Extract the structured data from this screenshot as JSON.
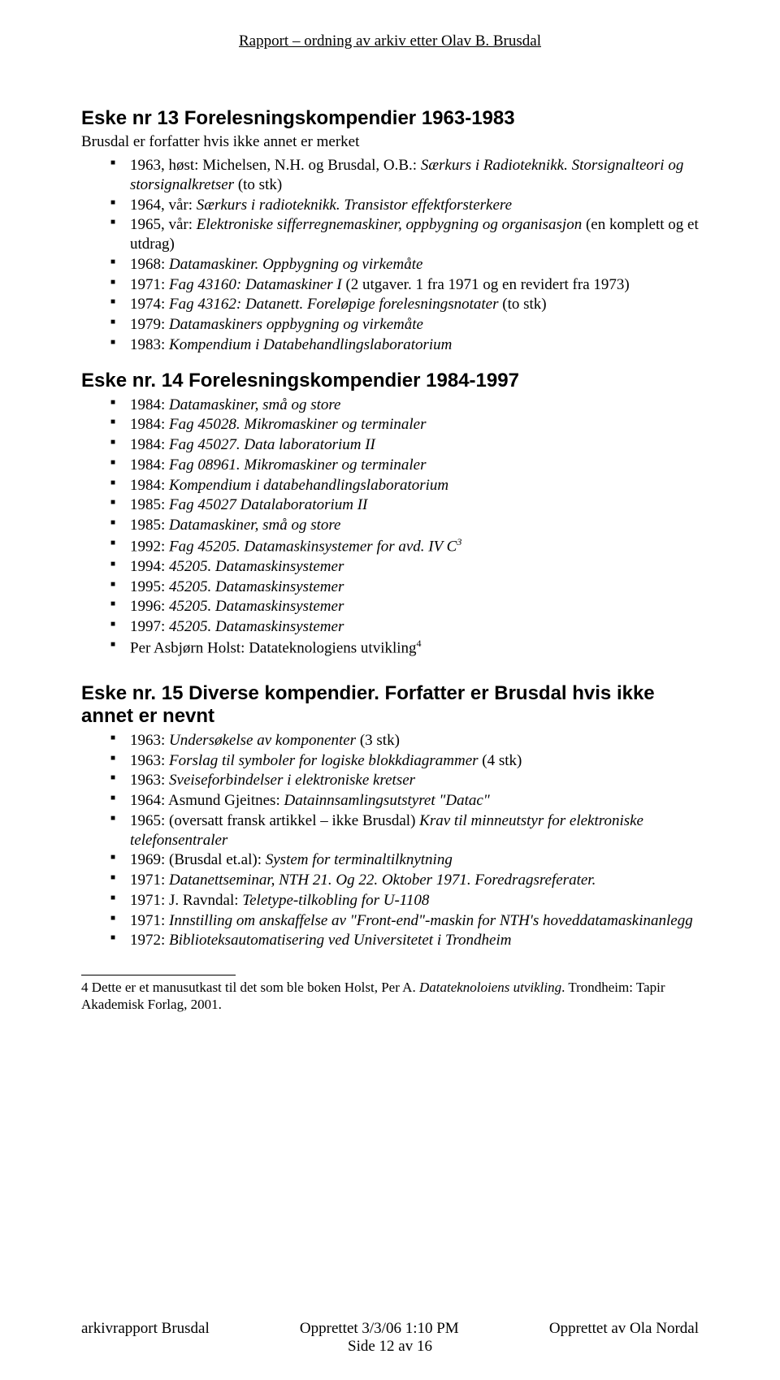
{
  "header": "Rapport – ordning av arkiv etter Olav B. Brusdal",
  "section1": {
    "heading": "Eske nr 13 Forelesningskompendier 1963-1983",
    "subtext": "Brusdal er forfatter hvis ikke annet er merket",
    "items": [
      {
        "prefix": "1963, høst: Michelsen, N.H. og Brusdal, O.B.: ",
        "italic": "Særkurs i Radioteknikk. Storsignalteori og storsignalkretser",
        "suffix": " (to stk)"
      },
      {
        "prefix": "1964, vår: ",
        "italic": "Særkurs i radioteknikk. Transistor effektforsterkere",
        "suffix": ""
      },
      {
        "prefix": "1965, vår: ",
        "italic": "Elektroniske sifferregnemaskiner, oppbygning og organisasjon",
        "suffix": " (en komplett og et utdrag)"
      },
      {
        "prefix": "1968: ",
        "italic": "Datamaskiner. Oppbygning og virkemåte",
        "suffix": ""
      },
      {
        "prefix": "1971: ",
        "italic": "Fag 43160: Datamaskiner I",
        "suffix": " (2 utgaver. 1 fra 1971 og en revidert fra 1973)"
      },
      {
        "prefix": "1974: ",
        "italic": "Fag 43162: Datanett. Foreløpige forelesningsnotater",
        "suffix": " (to stk)"
      },
      {
        "prefix": "1979: ",
        "italic": "Datamaskiners oppbygning og virkemåte",
        "suffix": ""
      },
      {
        "prefix": "1983: ",
        "italic": "Kompendium i Databehandlingslaboratorium",
        "suffix": ""
      }
    ]
  },
  "section2": {
    "heading": "Eske nr. 14 Forelesningskompendier 1984-1997",
    "items": [
      {
        "prefix": "1984: ",
        "italic": "Datamaskiner, små og store",
        "suffix": ""
      },
      {
        "prefix": "1984: ",
        "italic": "Fag 45028. Mikromaskiner og terminaler",
        "suffix": ""
      },
      {
        "prefix": "1984: ",
        "italic": "Fag 45027. Data laboratorium II",
        "suffix": ""
      },
      {
        "prefix": "1984: ",
        "italic": "Fag 08961. Mikromaskiner og terminaler",
        "suffix": ""
      },
      {
        "prefix": "1984: ",
        "italic": "Kompendium i databehandlingslaboratorium",
        "suffix": ""
      },
      {
        "prefix": "1985: ",
        "italic": "Fag 45027 Datalaboratorium II",
        "suffix": ""
      },
      {
        "prefix": "1985: ",
        "italic": "Datamaskiner, små og store",
        "suffix": ""
      },
      {
        "prefix": "1992: ",
        "italic": "Fag 45205. Datamaskinsystemer for avd. IV C",
        "suffix": "",
        "sup": "3"
      },
      {
        "prefix": "1994: ",
        "italic": "45205. Datamaskinsystemer",
        "suffix": ""
      },
      {
        "prefix": "1995: ",
        "italic": "45205. Datamaskinsystemer",
        "suffix": ""
      },
      {
        "prefix": "1996: ",
        "italic": "45205. Datamaskinsystemer",
        "suffix": ""
      },
      {
        "prefix": "1997: ",
        "italic": "45205. Datamaskinsystemer",
        "suffix": ""
      },
      {
        "prefix": "Per Asbjørn Holst: Datateknologiens utvikling",
        "italic": "",
        "suffix": "",
        "sup_normal": "4"
      }
    ]
  },
  "section3": {
    "heading": "Eske nr. 15 Diverse kompendier. Forfatter er Brusdal hvis ikke annet er nevnt",
    "items": [
      {
        "prefix": "1963: ",
        "italic": "Undersøkelse av komponenter",
        "suffix": " (3 stk)"
      },
      {
        "prefix": "1963: ",
        "italic": "Forslag til symboler for logiske blokkdiagrammer",
        "suffix": " (4 stk)"
      },
      {
        "prefix": "1963: ",
        "italic": "Sveiseforbindelser i elektroniske kretser",
        "suffix": ""
      },
      {
        "prefix": "1964: Asmund Gjeitnes: ",
        "italic": "Datainnsamlingsutstyret \"Datac\"",
        "suffix": ""
      },
      {
        "prefix": "1965: (oversatt fransk artikkel – ikke Brusdal) ",
        "italic": "Krav til minneutstyr for elektroniske telefonsentraler",
        "suffix": ""
      },
      {
        "prefix": "1969: (Brusdal et.al): ",
        "italic": "System for terminaltilknytning",
        "suffix": ""
      },
      {
        "prefix": "1971: ",
        "italic": "Datanettseminar, NTH 21. Og 22. Oktober 1971. Foredragsreferater.",
        "suffix": ""
      },
      {
        "prefix": "1971: J. Ravndal: ",
        "italic": "Teletype-tilkobling for U-1108",
        "suffix": ""
      },
      {
        "prefix": "1971: ",
        "italic": "Innstilling om anskaffelse av \"Front-end\"-maskin for NTH's hoveddatamaskinanlegg",
        "suffix": ""
      },
      {
        "prefix": "1972: ",
        "italic": "Biblioteksautomatisering ved Universitetet i Trondheim",
        "suffix": ""
      }
    ]
  },
  "footnote": {
    "num": "4",
    "text_part1": " Dette er et manusutkast til det som ble boken Holst, Per A. ",
    "italic": "Datateknoloiens utvikling",
    "text_part2": ". Trondheim: Tapir Akademisk Forlag, 2001."
  },
  "footer": {
    "left": "arkivrapport Brusdal",
    "center_top": "Opprettet 3/3/06 1:10 PM",
    "right": "Opprettet av Ola Nordal",
    "center_bottom": "Side 12 av 16"
  }
}
